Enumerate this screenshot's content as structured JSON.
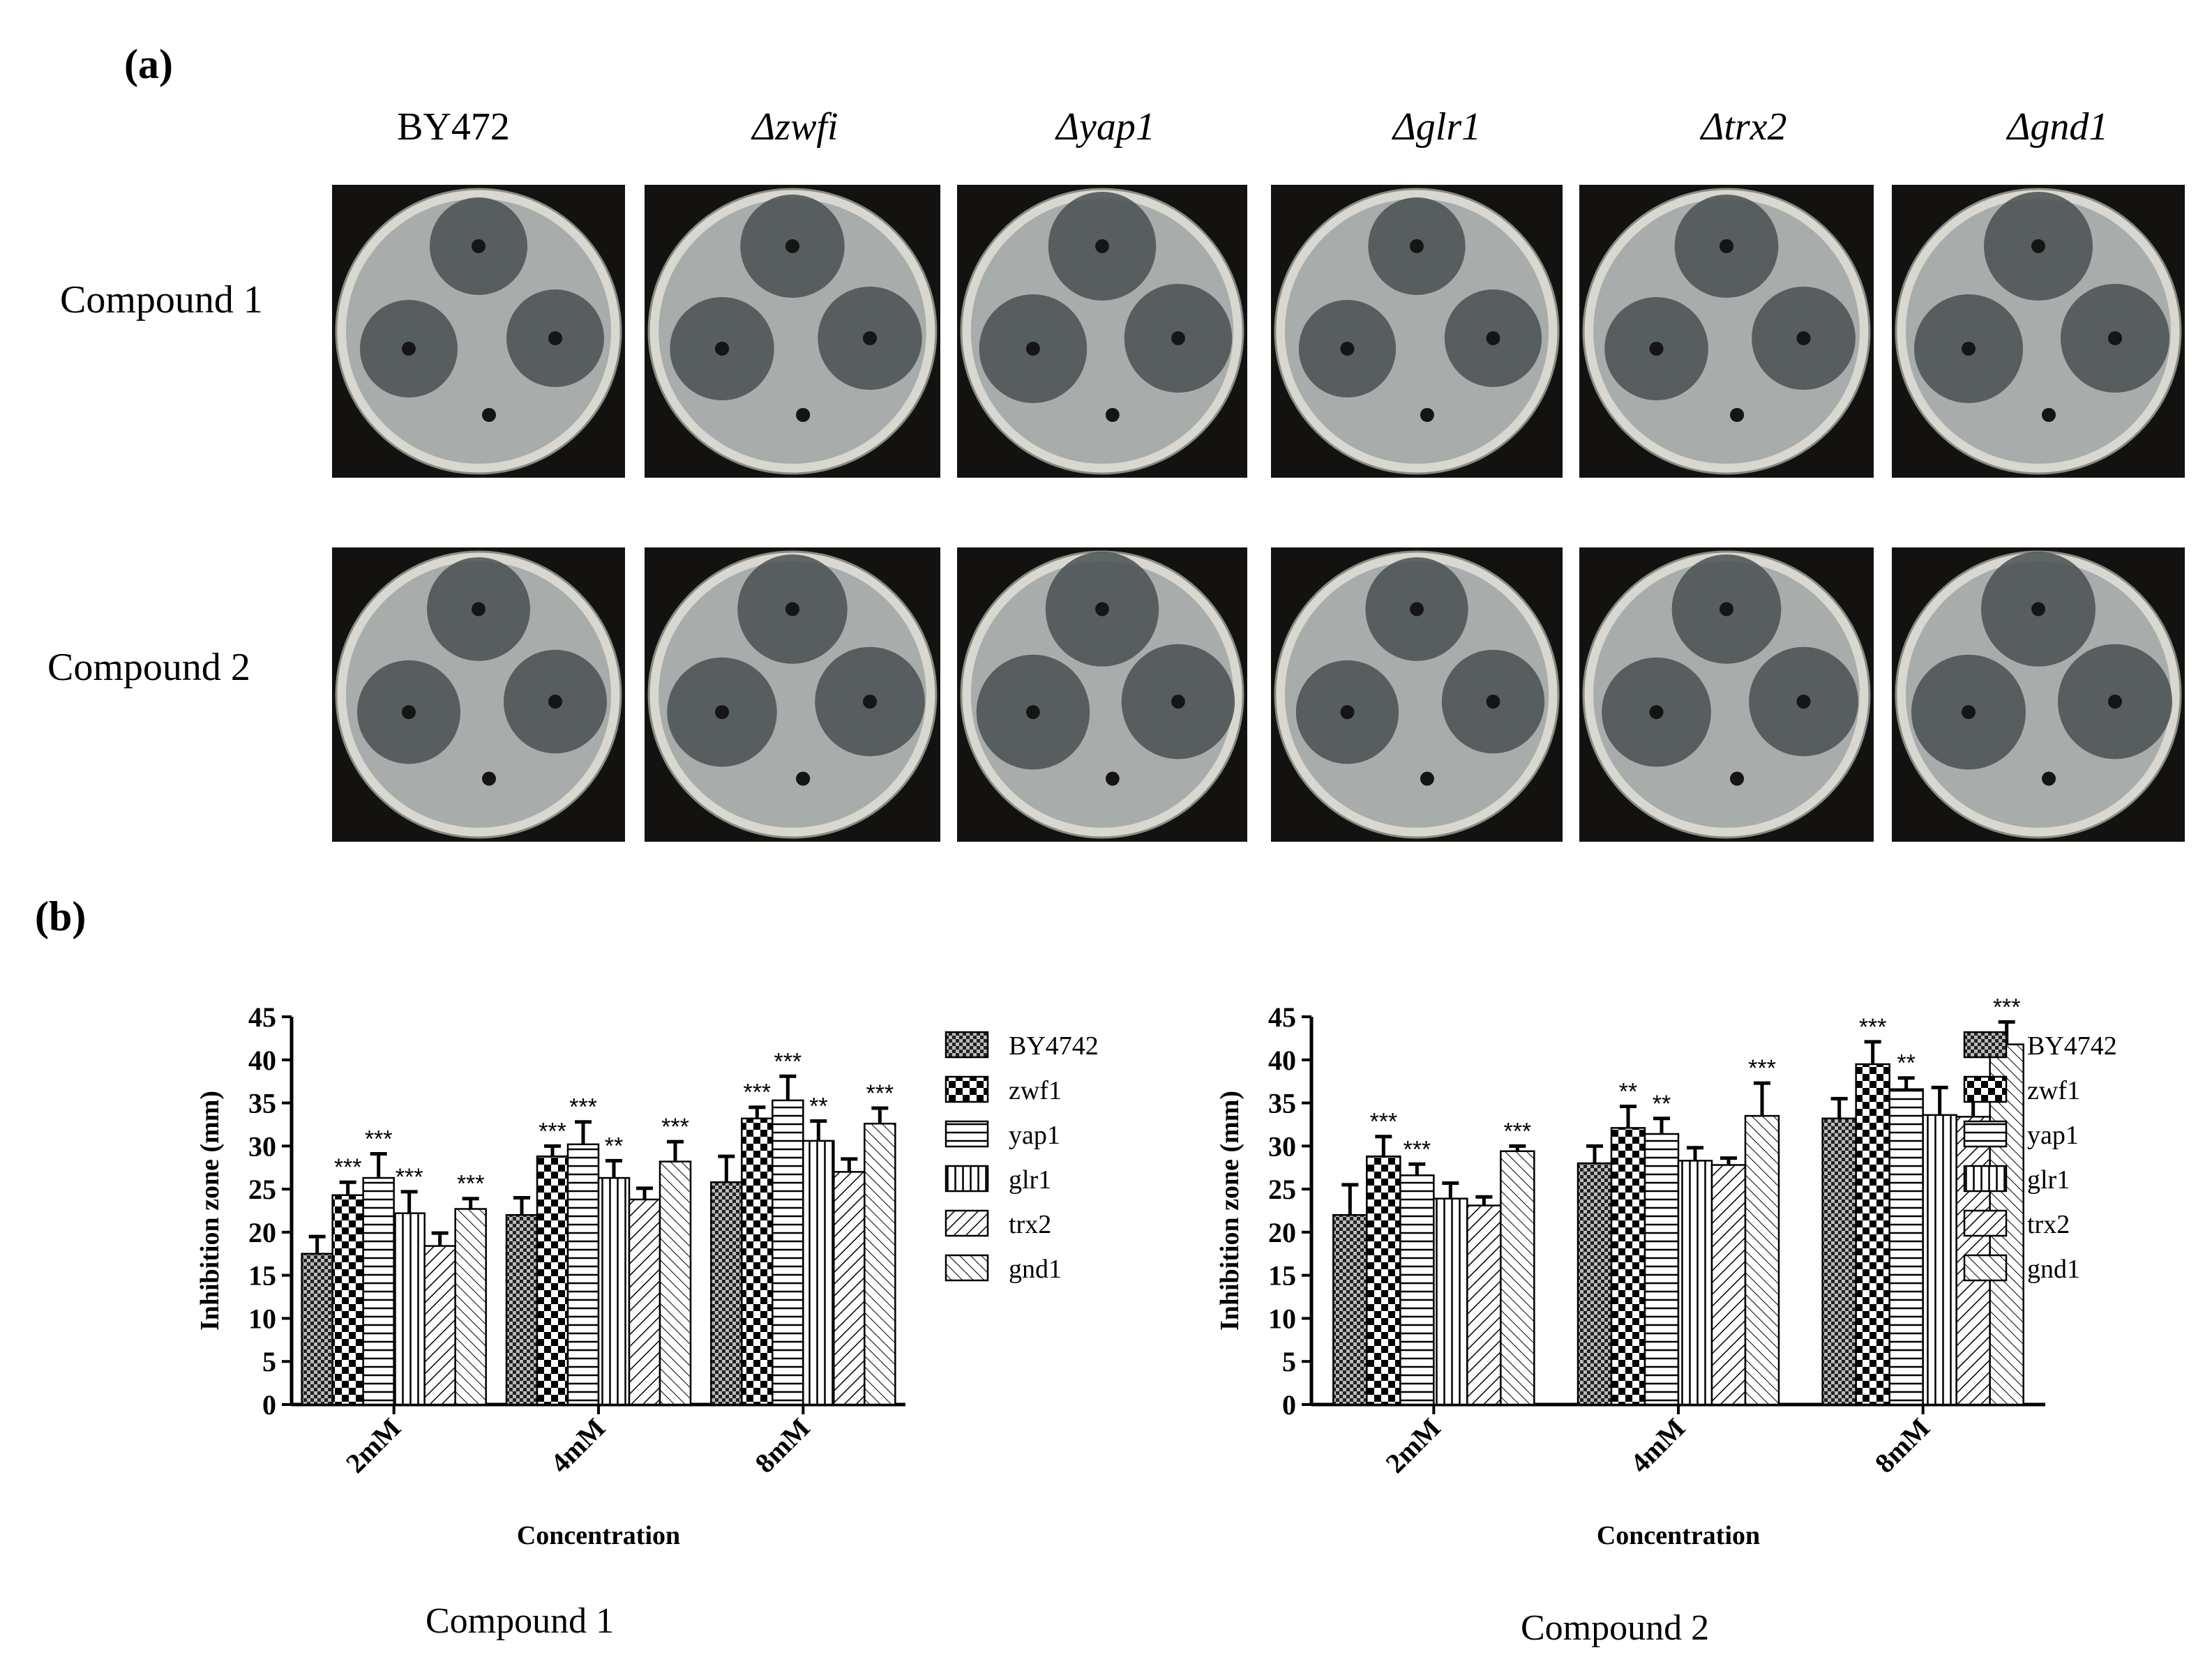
{
  "panel_a": {
    "label": "(a)",
    "strains": [
      {
        "name": "BY472",
        "italic": false
      },
      {
        "name": "Δzwfi",
        "italic": true
      },
      {
        "name": "Δyap1",
        "italic": true
      },
      {
        "name": "Δglr1",
        "italic": true
      },
      {
        "name": "Δtrx2",
        "italic": true
      },
      {
        "name": "Δgnd1",
        "italic": true
      }
    ],
    "rows": [
      "Compound  1",
      "Compound  2"
    ],
    "colors": {
      "plate_background": "#141210",
      "agar": "#a8acaa",
      "inhibition_zone": "#4a5052",
      "well": "#151515"
    }
  },
  "panel_b": {
    "label": "(b)",
    "captions": [
      "Compound  1",
      "Compound  2"
    ]
  },
  "chart_data": [
    {
      "type": "bar",
      "caption": "Compound  1",
      "categories": [
        "2mM",
        "4mM",
        "8mM"
      ],
      "xlabel": "Concentration",
      "ylabel": "Inhibition zone (mm)",
      "ylim": [
        0,
        45
      ],
      "yticks": [
        "0",
        "5",
        "10",
        "15",
        "20",
        "25",
        "30",
        "35",
        "40",
        "45"
      ],
      "legend_position": "right",
      "series": [
        {
          "name": "BY4742",
          "pattern": "fine-checker",
          "values": [
            17.5,
            22,
            25.8
          ],
          "errors": [
            2,
            2,
            3
          ],
          "sig": [
            "",
            "",
            ""
          ]
        },
        {
          "name": "zwf1",
          "pattern": "coarse-checker",
          "values": [
            24.3,
            28.8,
            33.2
          ],
          "errors": [
            1.5,
            1.2,
            1.3
          ],
          "sig": [
            "***",
            "***",
            "***"
          ]
        },
        {
          "name": "yap1",
          "pattern": "horizontal",
          "values": [
            26.3,
            30.2,
            35.3
          ],
          "errors": [
            2.8,
            2.6,
            2.8
          ],
          "sig": [
            "***",
            "***",
            "***"
          ]
        },
        {
          "name": "glr1",
          "pattern": "vertical",
          "values": [
            22.2,
            26.3,
            30.6
          ],
          "errors": [
            2.5,
            2,
            2.3
          ],
          "sig": [
            "***",
            "**",
            "**"
          ]
        },
        {
          "name": "trx2",
          "pattern": "diagonal-up",
          "values": [
            18.4,
            23.8,
            27
          ],
          "errors": [
            1.5,
            1.3,
            1.5
          ],
          "sig": [
            "",
            "",
            ""
          ]
        },
        {
          "name": "gnd1",
          "pattern": "diagonal-down",
          "values": [
            22.7,
            28.2,
            32.6
          ],
          "errors": [
            1.2,
            2.3,
            1.8
          ],
          "sig": [
            "***",
            "***",
            "***"
          ]
        }
      ]
    },
    {
      "type": "bar",
      "caption": "Compound  2",
      "categories": [
        "2mM",
        "4mM",
        "8mM"
      ],
      "xlabel": "Concentration",
      "ylabel": "Inhibition zone (mm)",
      "ylim": [
        0,
        45
      ],
      "yticks": [
        "0",
        "5",
        "10",
        "15",
        "20",
        "25",
        "30",
        "35",
        "40",
        "45"
      ],
      "legend_position": "right",
      "series": [
        {
          "name": "BY4742",
          "pattern": "fine-checker",
          "values": [
            22,
            28,
            33.2
          ],
          "errors": [
            3.5,
            2,
            2.3
          ],
          "sig": [
            "",
            "",
            ""
          ]
        },
        {
          "name": "zwf1",
          "pattern": "coarse-checker",
          "values": [
            28.8,
            32.1,
            39.5
          ],
          "errors": [
            2.3,
            2.5,
            2.6
          ],
          "sig": [
            "***",
            "**",
            "***"
          ]
        },
        {
          "name": "yap1",
          "pattern": "horizontal",
          "values": [
            26.6,
            31.4,
            36.6
          ],
          "errors": [
            1.3,
            1.8,
            1.3
          ],
          "sig": [
            "***",
            "**",
            "**"
          ]
        },
        {
          "name": "glr1",
          "pattern": "vertical",
          "values": [
            23.9,
            28.3,
            33.6
          ],
          "errors": [
            1.8,
            1.5,
            3.2
          ],
          "sig": [
            "",
            "",
            ""
          ]
        },
        {
          "name": "trx2",
          "pattern": "diagonal-up",
          "values": [
            23.1,
            27.8,
            33.4
          ],
          "errors": [
            1,
            0.8,
            2
          ],
          "sig": [
            "",
            "",
            ""
          ]
        },
        {
          "name": "gnd1",
          "pattern": "diagonal-down",
          "values": [
            29.4,
            33.5,
            41.8
          ],
          "errors": [
            0.6,
            3.8,
            2.6
          ],
          "sig": [
            "***",
            "***",
            "***"
          ]
        }
      ]
    }
  ]
}
